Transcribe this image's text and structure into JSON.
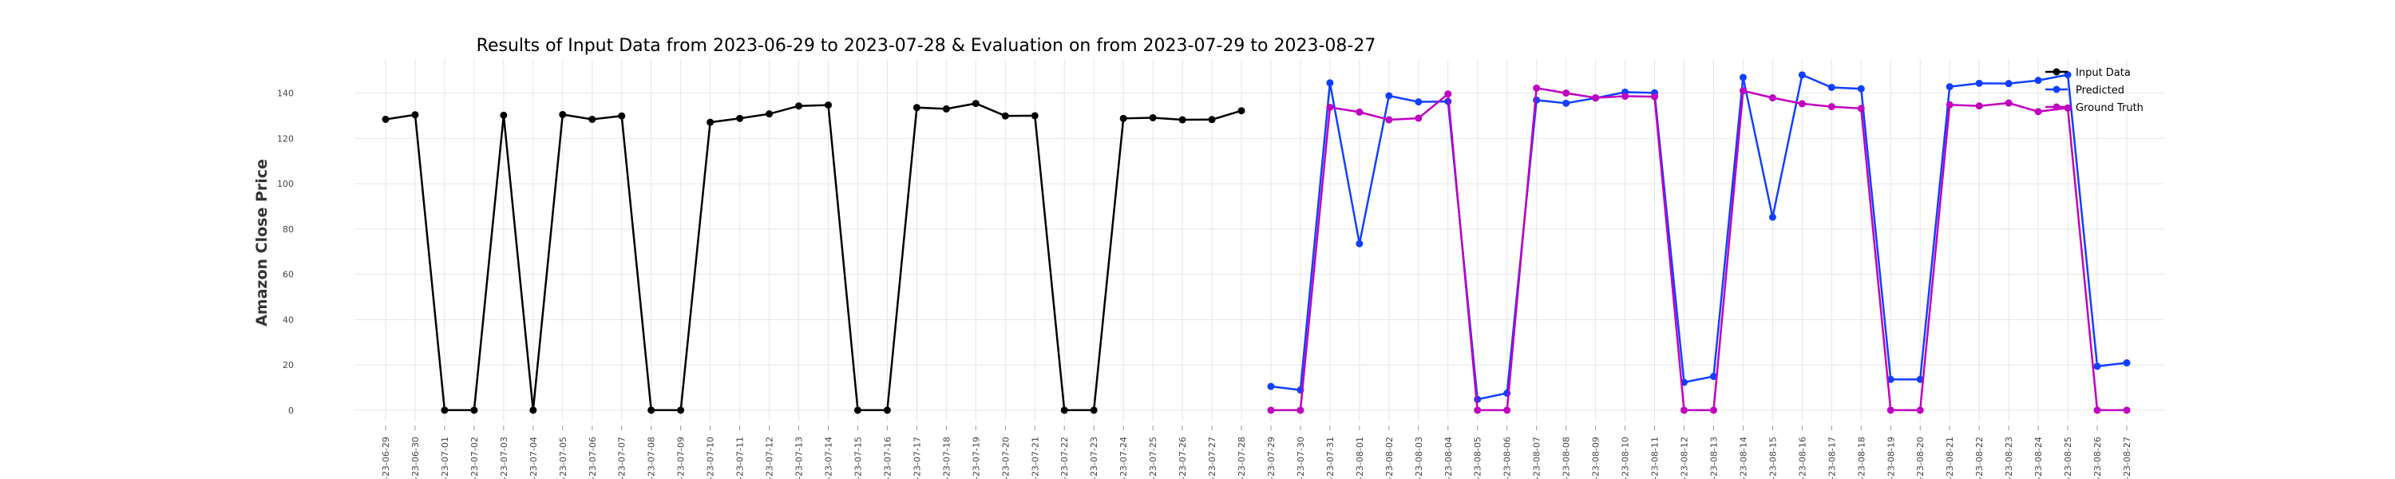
{
  "chart_data": {
    "type": "line",
    "title": "Results of Input Data from 2023-06-29 to 2023-07-28 & Evaluation on from 2023-07-29 to 2023-08-27",
    "xlabel": "",
    "ylabel": "Amazon Close Price",
    "ylim": [
      -5,
      155
    ],
    "yticks": [
      0,
      20,
      40,
      60,
      80,
      100,
      120,
      140
    ],
    "grid": true,
    "legend_position": "top-right",
    "dates": [
      "2023-06-29",
      "2023-06-30",
      "2023-07-01",
      "2023-07-02",
      "2023-07-03",
      "2023-07-04",
      "2023-07-05",
      "2023-07-06",
      "2023-07-07",
      "2023-07-08",
      "2023-07-09",
      "2023-07-10",
      "2023-07-11",
      "2023-07-12",
      "2023-07-13",
      "2023-07-14",
      "2023-07-15",
      "2023-07-16",
      "2023-07-17",
      "2023-07-18",
      "2023-07-19",
      "2023-07-20",
      "2023-07-21",
      "2023-07-22",
      "2023-07-23",
      "2023-07-24",
      "2023-07-25",
      "2023-07-26",
      "2023-07-27",
      "2023-07-28",
      "2023-07-29",
      "2023-07-30",
      "2023-07-31",
      "2023-08-01",
      "2023-08-02",
      "2023-08-03",
      "2023-08-04",
      "2023-08-05",
      "2023-08-06",
      "2023-08-07",
      "2023-08-08",
      "2023-08-09",
      "2023-08-10",
      "2023-08-11",
      "2023-08-12",
      "2023-08-13",
      "2023-08-14",
      "2023-08-15",
      "2023-08-16",
      "2023-08-17",
      "2023-08-18",
      "2023-08-19",
      "2023-08-20",
      "2023-08-21",
      "2023-08-22",
      "2023-08-23",
      "2023-08-24",
      "2023-08-25",
      "2023-08-26",
      "2023-08-27"
    ],
    "tick_labels": [
      "-23-06-29",
      "-23-06-30",
      "-23-07-01",
      "-23-07-02",
      "-23-07-03",
      "-23-07-04",
      "-23-07-05",
      "-23-07-06",
      "-23-07-07",
      "-23-07-08",
      "-23-07-09",
      "-23-07-10",
      "-23-07-11",
      "-23-07-12",
      "-23-07-13",
      "-23-07-14",
      "-23-07-15",
      "-23-07-16",
      "-23-07-17",
      "-23-07-18",
      "-23-07-19",
      "-23-07-20",
      "-23-07-21",
      "-23-07-22",
      "-23-07-23",
      "-23-07-24",
      "-23-07-25",
      "-23-07-26",
      "-23-07-27",
      "-23-07-28",
      "-23-07-29",
      "-23-07-30",
      "-23-07-31",
      "-23-08-01",
      "-23-08-02",
      "-23-08-03",
      "-23-08-04",
      "-23-08-05",
      "-23-08-06",
      "-23-08-07",
      "-23-08-08",
      "-23-08-09",
      "-23-08-10",
      "-23-08-11",
      "-23-08-12",
      "-23-08-13",
      "-23-08-14",
      "-23-08-15",
      "-23-08-16",
      "-23-08-17",
      "-23-08-18",
      "-23-08-19",
      "-23-08-20",
      "-23-08-21",
      "-23-08-22",
      "-23-08-23",
      "-23-08-24",
      "-23-08-25",
      "-23-08-26",
      "-23-08-27"
    ],
    "series": [
      {
        "name": "Input Data",
        "color": "#000000",
        "x": [
          "2023-06-29",
          "2023-06-30",
          "2023-07-01",
          "2023-07-02",
          "2023-07-03",
          "2023-07-04",
          "2023-07-05",
          "2023-07-06",
          "2023-07-07",
          "2023-07-08",
          "2023-07-09",
          "2023-07-10",
          "2023-07-11",
          "2023-07-12",
          "2023-07-13",
          "2023-07-14",
          "2023-07-15",
          "2023-07-16",
          "2023-07-17",
          "2023-07-18",
          "2023-07-19",
          "2023-07-20",
          "2023-07-21",
          "2023-07-22",
          "2023-07-23",
          "2023-07-24",
          "2023-07-25",
          "2023-07-26",
          "2023-07-27",
          "2023-07-28"
        ],
        "values": [
          128.4,
          130.4,
          0,
          0,
          130.2,
          0,
          130.5,
          128.4,
          129.9,
          0,
          0,
          127.1,
          128.8,
          130.8,
          134.3,
          134.7,
          0,
          0,
          133.6,
          133.0,
          135.4,
          129.9,
          130.0,
          0,
          0,
          128.8,
          129.1,
          128.2,
          128.3,
          132.2
        ]
      },
      {
        "name": "Predicted",
        "color": "#1040ff",
        "x": [
          "2023-07-29",
          "2023-07-30",
          "2023-07-31",
          "2023-08-01",
          "2023-08-02",
          "2023-08-03",
          "2023-08-04",
          "2023-08-05",
          "2023-08-06",
          "2023-08-07",
          "2023-08-08",
          "2023-08-09",
          "2023-08-10",
          "2023-08-11",
          "2023-08-12",
          "2023-08-13",
          "2023-08-14",
          "2023-08-15",
          "2023-08-16",
          "2023-08-17",
          "2023-08-18",
          "2023-08-19",
          "2023-08-20",
          "2023-08-21",
          "2023-08-22",
          "2023-08-23",
          "2023-08-24",
          "2023-08-25",
          "2023-08-26",
          "2023-08-27"
        ],
        "values": [
          10.5,
          8.9,
          144.5,
          73.5,
          138.8,
          136.1,
          136.3,
          4.8,
          7.5,
          136.9,
          135.5,
          137.8,
          140.4,
          140.1,
          12.3,
          14.9,
          146.9,
          85.2,
          148.0,
          142.5,
          141.9,
          13.6,
          13.6,
          142.8,
          144.3,
          144.2,
          145.6,
          148.1,
          19.4,
          20.9
        ]
      },
      {
        "name": "Ground Truth",
        "color": "#c000c0",
        "x": [
          "2023-07-29",
          "2023-07-30",
          "2023-07-31",
          "2023-08-01",
          "2023-08-02",
          "2023-08-03",
          "2023-08-04",
          "2023-08-05",
          "2023-08-06",
          "2023-08-07",
          "2023-08-08",
          "2023-08-09",
          "2023-08-10",
          "2023-08-11",
          "2023-08-12",
          "2023-08-13",
          "2023-08-14",
          "2023-08-15",
          "2023-08-16",
          "2023-08-17",
          "2023-08-18",
          "2023-08-19",
          "2023-08-20",
          "2023-08-21",
          "2023-08-22",
          "2023-08-23",
          "2023-08-24",
          "2023-08-25",
          "2023-08-26",
          "2023-08-27"
        ],
        "values": [
          0,
          0,
          133.7,
          131.6,
          128.2,
          128.9,
          139.6,
          0,
          0,
          142.2,
          140.0,
          137.9,
          138.6,
          138.4,
          0,
          0,
          141.0,
          137.9,
          135.3,
          134.0,
          133.2,
          0,
          0,
          134.8,
          134.3,
          135.6,
          131.8,
          133.4,
          0,
          0
        ]
      }
    ]
  }
}
